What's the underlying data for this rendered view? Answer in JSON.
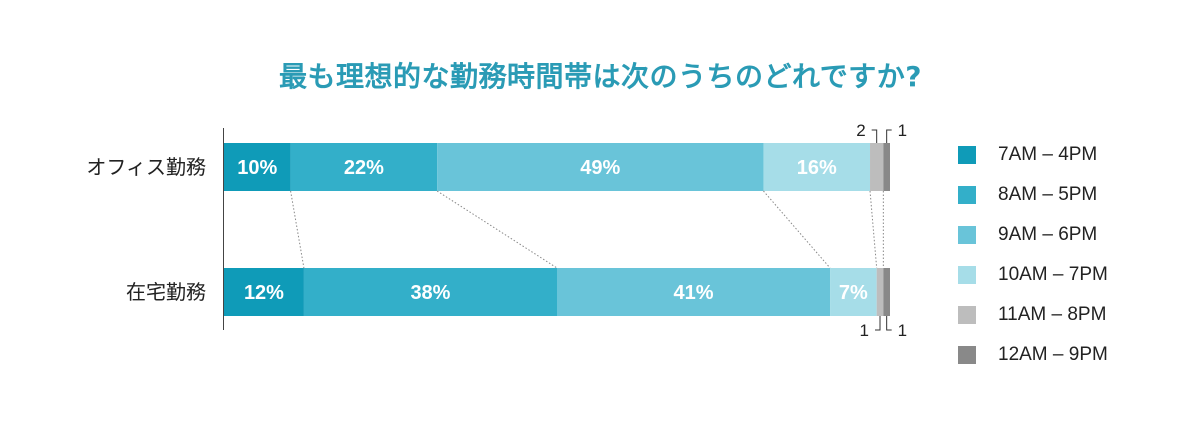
{
  "chart_data": {
    "type": "bar",
    "orientation": "horizontal",
    "stacked": true,
    "title": "最も理想的な勤務時間帯は次のうちのどれですか?",
    "categories": [
      "オフィス勤務",
      "在宅勤務"
    ],
    "series": [
      {
        "name": "7AM – 4PM",
        "color": "#0f9bb8",
        "values": [
          10,
          12
        ],
        "labels": [
          "10%",
          "12%"
        ]
      },
      {
        "name": "8AM – 5PM",
        "color": "#33afc9",
        "values": [
          22,
          38
        ],
        "labels": [
          "22%",
          "38%"
        ]
      },
      {
        "name": "9AM – 6PM",
        "color": "#69c4d9",
        "values": [
          49,
          41
        ],
        "labels": [
          "49%",
          "41%"
        ]
      },
      {
        "name": "10AM – 7PM",
        "color": "#a6dde8",
        "values": [
          16,
          7
        ],
        "labels": [
          "16%",
          "7%"
        ]
      },
      {
        "name": "11AM – 8PM",
        "color": "#bdbdbd",
        "values": [
          2,
          1
        ],
        "labels": [
          "2",
          "1"
        ]
      },
      {
        "name": "12AM – 9PM",
        "color": "#898989",
        "values": [
          1,
          1
        ],
        "labels": [
          "1",
          "1"
        ]
      }
    ],
    "xlim": [
      0,
      100
    ],
    "legend_position": "right",
    "grid": false
  }
}
